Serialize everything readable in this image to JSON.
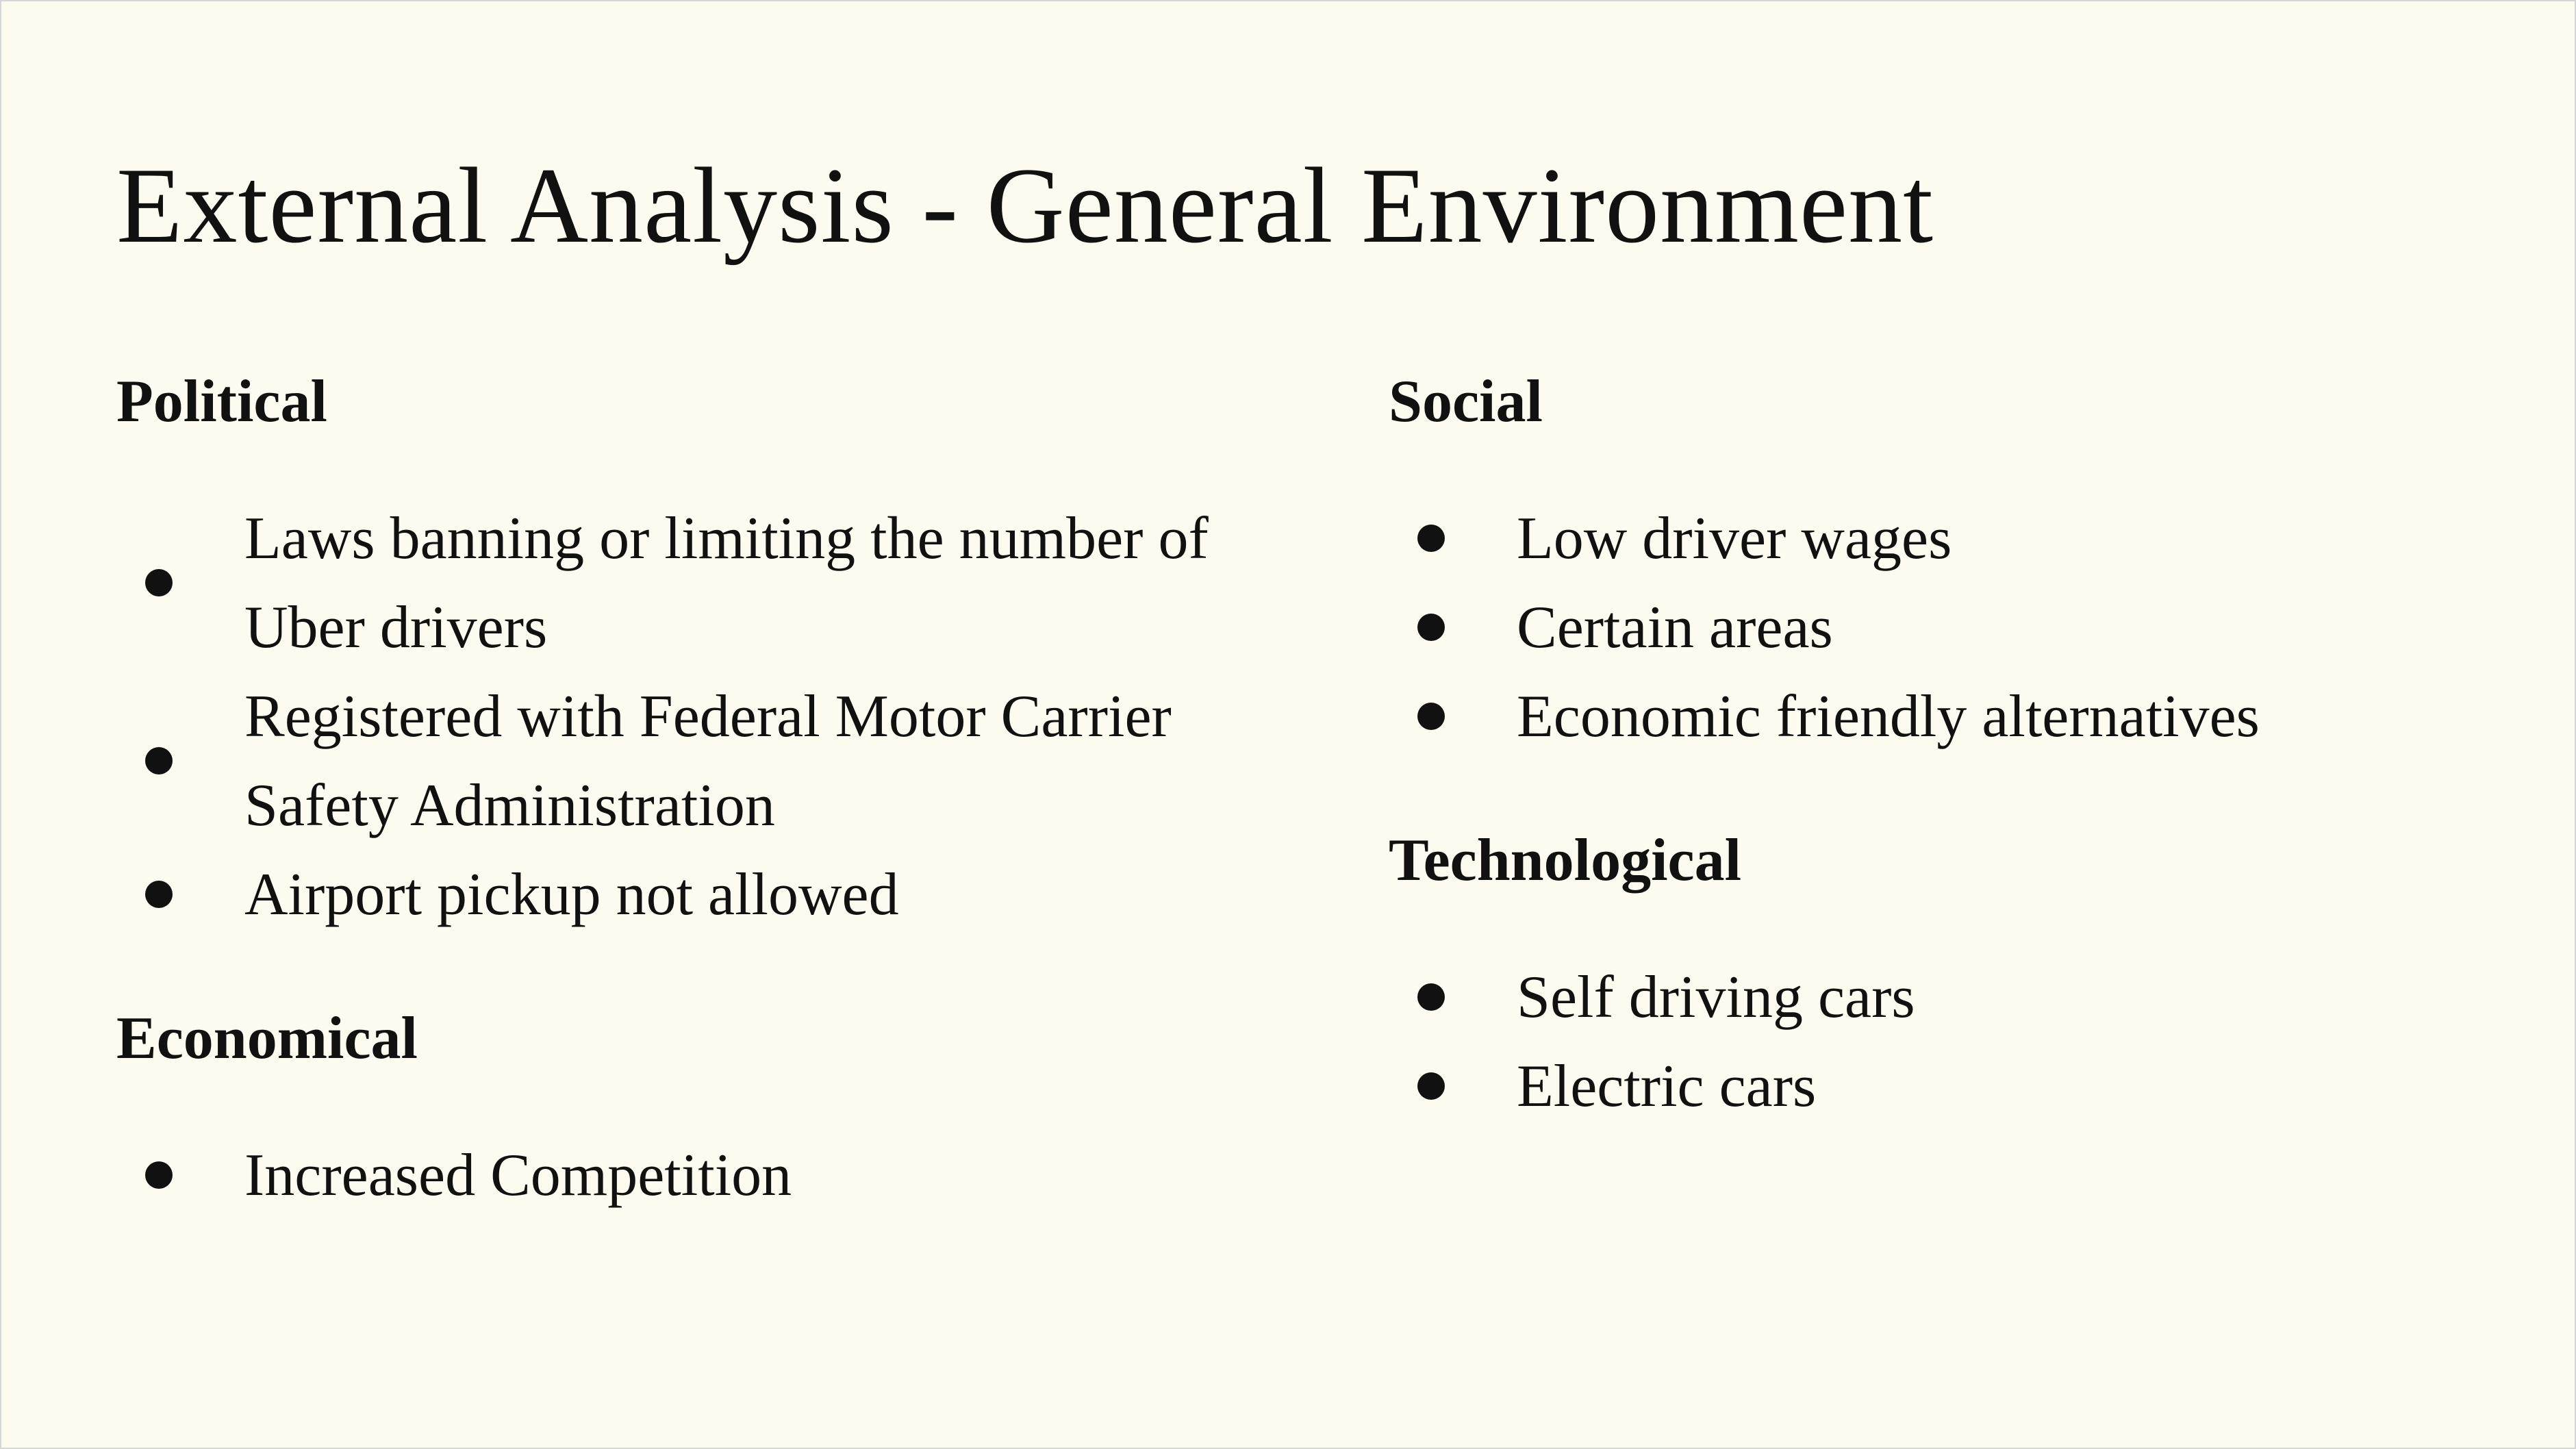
{
  "slide": {
    "title": "External Analysis - General Environment",
    "background_color": "#fdfbf0",
    "text_color": "#111111"
  },
  "sections": {
    "political": {
      "heading": "Political",
      "items": [
        "Laws banning or limiting the number of Uber drivers",
        "Registered with Federal Motor Carrier Safety Administration",
        "Airport pickup not allowed"
      ]
    },
    "economical": {
      "heading": "Economical",
      "items": [
        "Increased Competition"
      ]
    },
    "social": {
      "heading": "Social",
      "items": [
        "Low driver wages",
        "Certain areas",
        "Economic friendly alternatives"
      ]
    },
    "technological": {
      "heading": "Technological",
      "items": [
        "Self driving cars",
        "Electric cars"
      ]
    }
  }
}
